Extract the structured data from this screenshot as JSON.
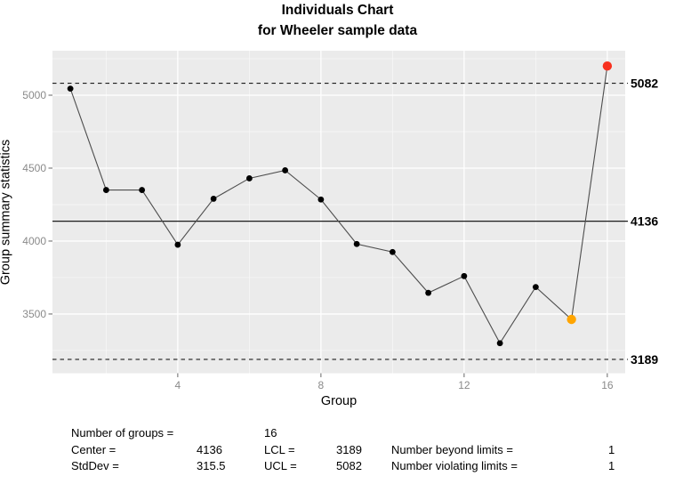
{
  "title": {
    "line1": "Individuals Chart",
    "line2": "for Wheeler sample data"
  },
  "chart_data": {
    "type": "line",
    "title": "Individuals Chart",
    "subtitle": "for Wheeler sample data",
    "xlabel": "Group",
    "ylabel": "Group summary statistics",
    "x": [
      1,
      2,
      3,
      4,
      5,
      6,
      7,
      8,
      9,
      10,
      11,
      12,
      13,
      14,
      15,
      16
    ],
    "values": [
      5045,
      4350,
      4350,
      3975,
      4290,
      4430,
      4485,
      4285,
      3980,
      3925,
      3645,
      3760,
      3300,
      3685,
      3463,
      5200
    ],
    "center": 4136,
    "ucl": 5082,
    "lcl": 3189,
    "x_ticks": [
      4,
      8,
      12,
      16
    ],
    "x_minor_ticks": [
      2,
      6,
      10,
      14
    ],
    "y_ticks": [
      3500,
      4000,
      4500,
      5000
    ],
    "y_minor_ticks": [
      3250,
      3750,
      4250,
      4750,
      5250
    ],
    "xlim": [
      0.5,
      16.5
    ],
    "ylim": [
      3094,
      5305
    ],
    "grid": true,
    "beyond_limit_points": [
      16
    ],
    "violating_run_points": [
      15
    ],
    "colors": {
      "beyond_limits": "#f8301e",
      "violating_runs": "#ffa500",
      "point": "#000000",
      "series_line": "#4d4d4d",
      "panel_background": "#ebebeb",
      "grid_line": "#ffffff",
      "limit_line": "#1c1c1c",
      "tick_label": "#8a8a8a",
      "tick_mark": "#666666"
    }
  },
  "stats": {
    "number_of_groups_label": "Number of groups =",
    "number_of_groups_value": "16",
    "center_label": "Center =",
    "center_value": "4136",
    "stddev_label": "StdDev =",
    "stddev_value": "315.5",
    "lcl_label": "LCL =",
    "lcl_value": "3189",
    "ucl_label": "UCL =",
    "ucl_value": "5082",
    "beyond_limits_label": "Number beyond limits =",
    "beyond_limits_value": "1",
    "violating_limits_label": "Number violating limits =",
    "violating_limits_value": "1"
  }
}
